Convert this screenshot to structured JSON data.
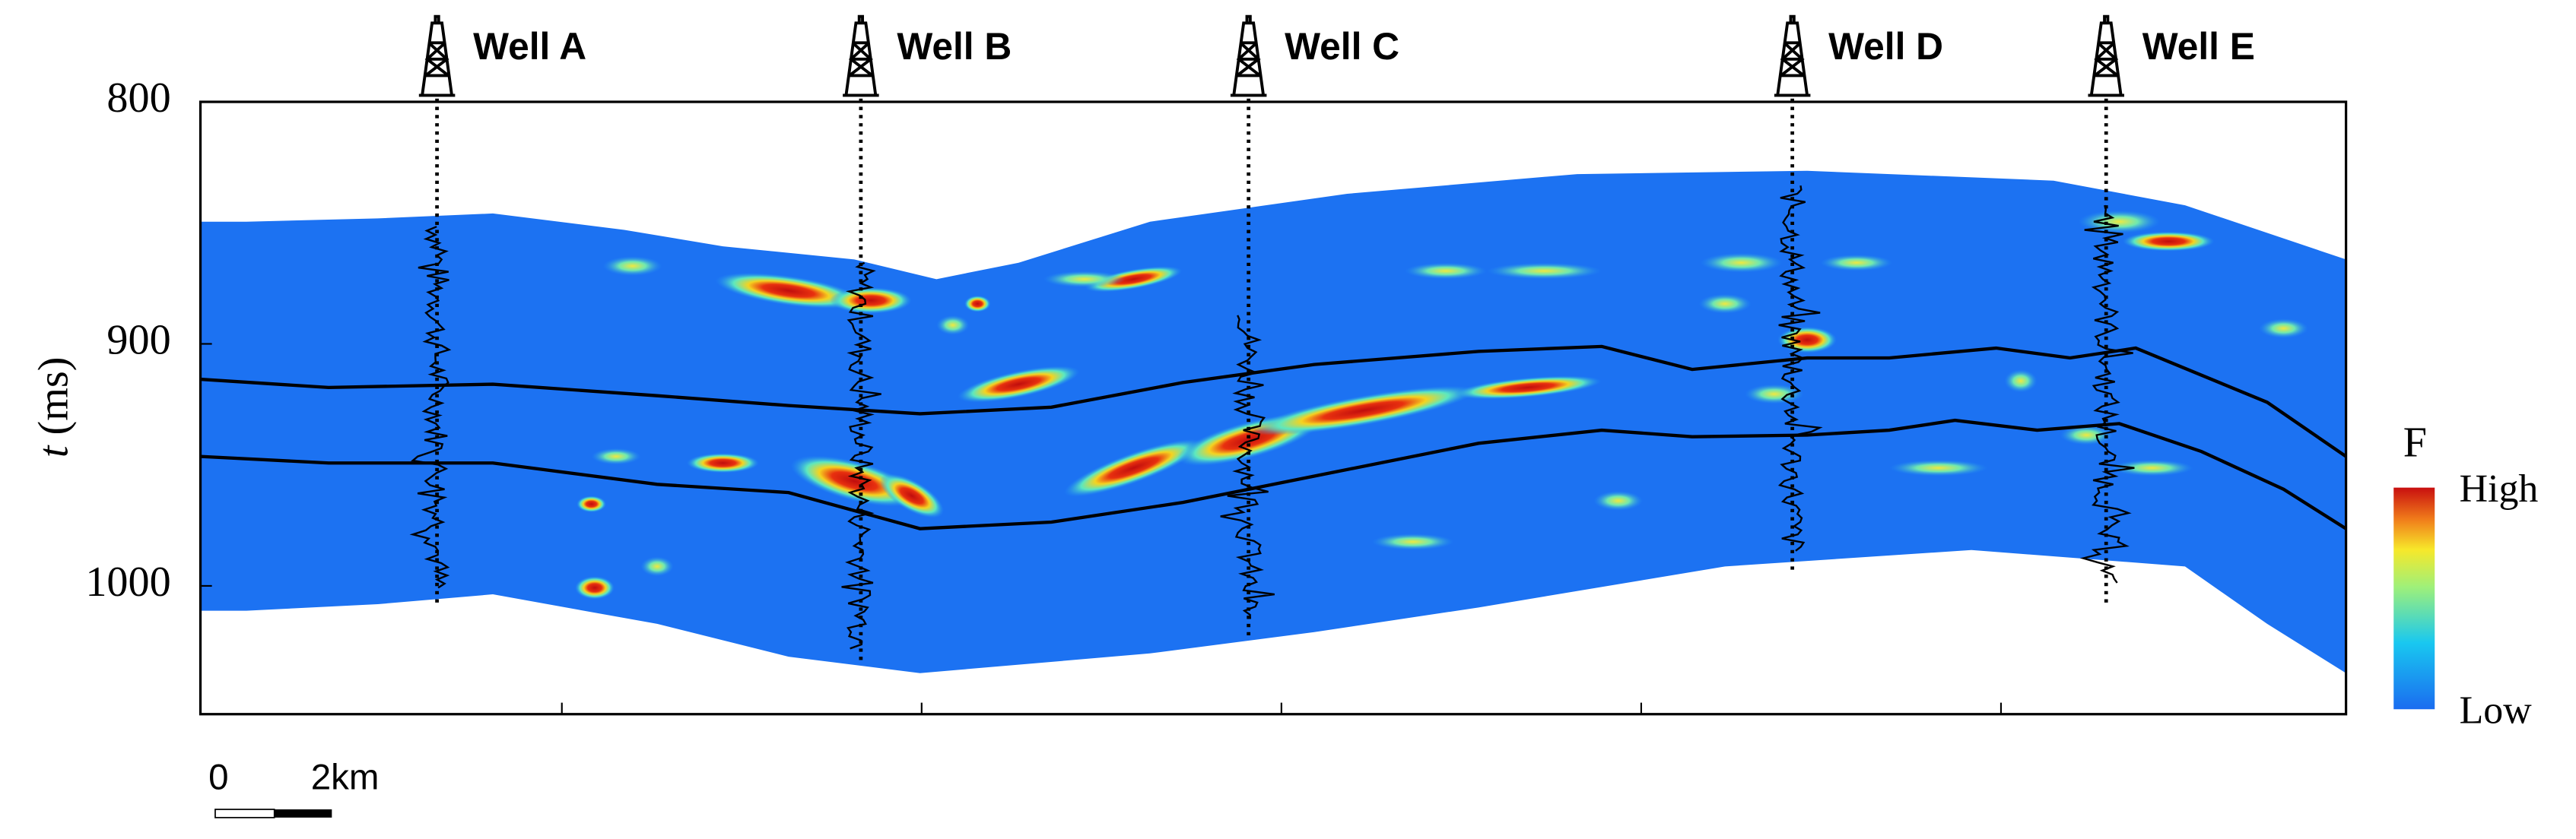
{
  "chart_data": {
    "type": "section",
    "y_label": {
      "variable": "t",
      "unit": "(ms)"
    },
    "ylim": [
      800,
      1053
    ],
    "yticks": [
      800,
      900,
      1000
    ],
    "wells": [
      "Well A",
      "Well B",
      "Well C",
      "Well D",
      "Well E"
    ],
    "colorbar": {
      "title": "F",
      "high": "High",
      "low": "Low"
    },
    "scale_bar": {
      "start": "0",
      "end": "2km"
    }
  }
}
